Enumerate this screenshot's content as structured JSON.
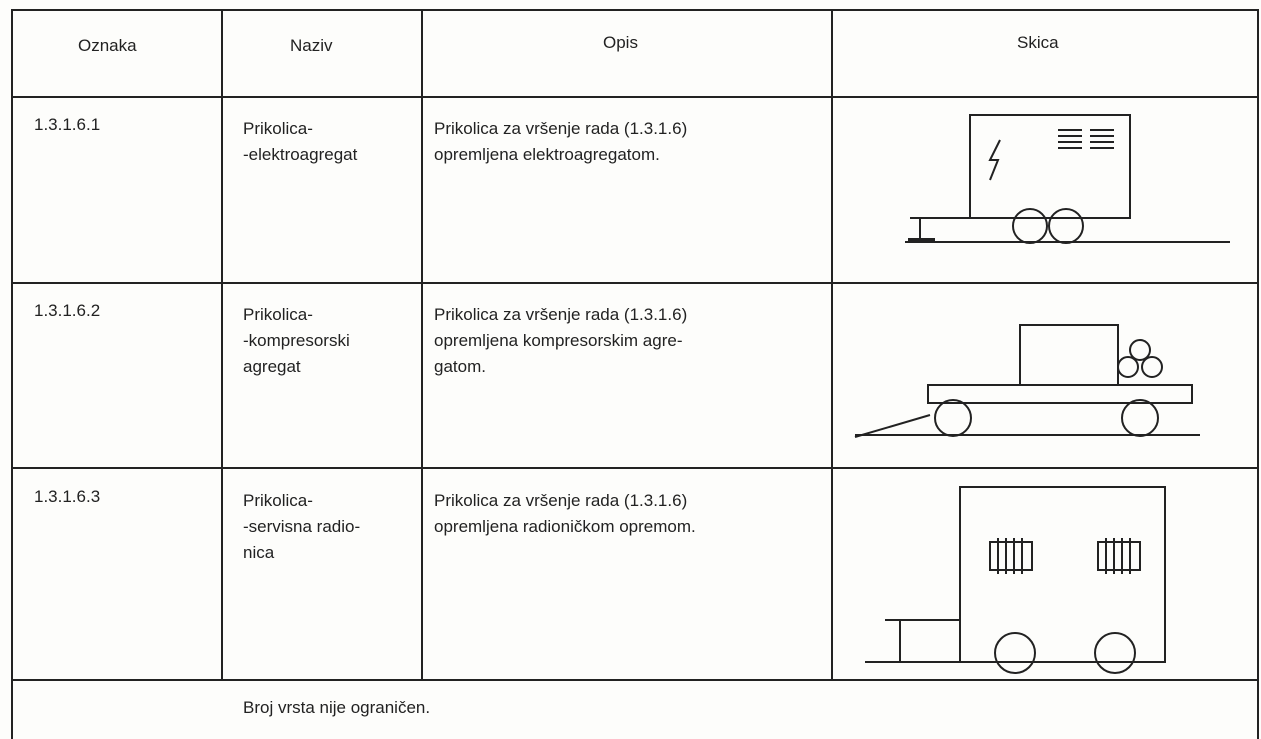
{
  "table": {
    "header": [
      "Oznaka",
      "Naziv",
      "Opis",
      "Skica"
    ],
    "rows": [
      {
        "code": "1.3.1.6.1",
        "name": [
          "Prikolica-",
          "-elektroagregat"
        ],
        "description": [
          "Prikolica za vršenje rada (1.3.1.6)",
          "opremljena elektroagregatom."
        ]
      },
      {
        "code": "1.3.1.6.2",
        "name": [
          "Prikolica-",
          "-kompresorski",
          "agregat"
        ],
        "description": [
          "Prikolica za vršenje rada (1.3.1.6)",
          "opremljena kompresorskim agre-",
          "gatom."
        ]
      },
      {
        "code": "1.3.1.6.3",
        "name": [
          "Prikolica-",
          "-servisna radio-",
          "nica"
        ],
        "description": [
          "Prikolica za vršenje rada (1.3.1.6)",
          "opremljena radioničkom opremom."
        ]
      }
    ],
    "footer": "Broj vrsta nije ograničen."
  }
}
